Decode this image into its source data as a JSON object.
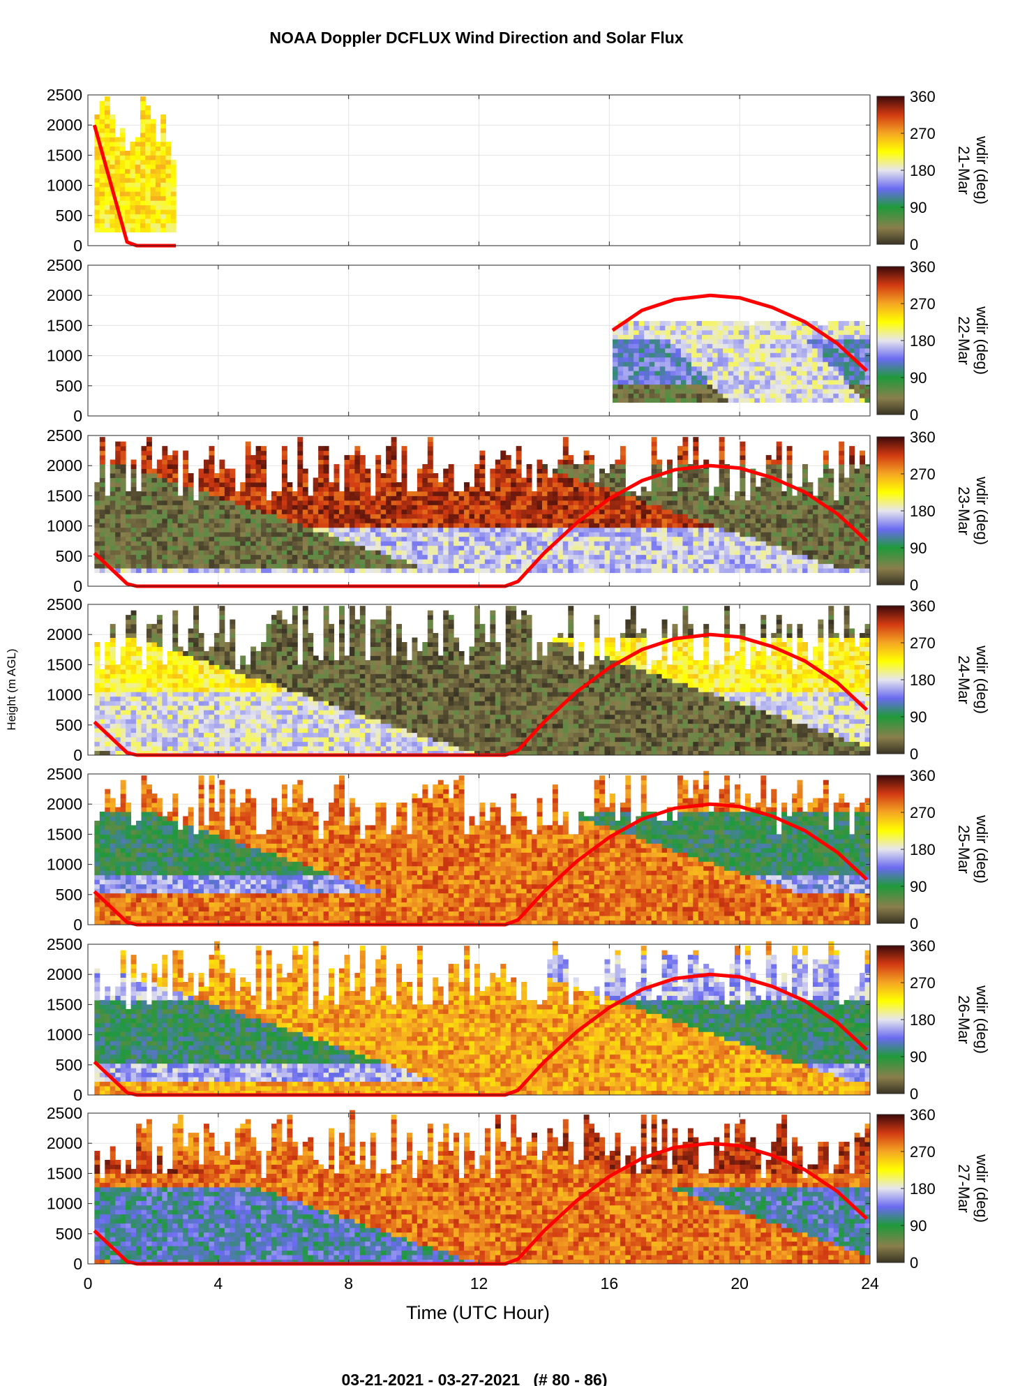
{
  "title": "NOAA Doppler DCFLUX Wind Direction and Solar Flux",
  "footer": "03-21-2021 - 03-27-2021   (# 80 - 86)",
  "ylabel": "Height (m AGL)",
  "xlabel": "Time (UTC Hour)",
  "chart_data": {
    "type": "heatmap",
    "title": "NOAA Doppler DCFLUX Wind Direction and Solar Flux",
    "xlabel": "Time (UTC Hour)",
    "ylabel": "Height (m AGL)",
    "xlim": [
      0,
      24
    ],
    "ylim": [
      0,
      2500
    ],
    "x_ticks": [
      0,
      4,
      8,
      12,
      16,
      20,
      24
    ],
    "y_ticks": [
      0,
      500,
      1000,
      1500,
      2000,
      2500
    ],
    "colorbar": {
      "label": "wdir (deg)",
      "range": [
        0,
        360
      ],
      "ticks": [
        0,
        90,
        180,
        270,
        360
      ],
      "stops": [
        {
          "value": 0,
          "color": "#3a3424"
        },
        {
          "value": 40,
          "color": "#8a7f4c"
        },
        {
          "value": 90,
          "color": "#1f9a3a"
        },
        {
          "value": 135,
          "color": "#6a6af0"
        },
        {
          "value": 180,
          "color": "#e6e6ee"
        },
        {
          "value": 225,
          "color": "#ffff00"
        },
        {
          "value": 270,
          "color": "#f5a623"
        },
        {
          "value": 315,
          "color": "#d23a12"
        },
        {
          "value": 360,
          "color": "#3b0a0a"
        }
      ]
    },
    "grid": true,
    "panels": [
      {
        "day": "21-Mar",
        "data_extent_hours": [
          0.2,
          2.7
        ],
        "wind_direction_profile": [
          {
            "height_range": [
              200,
              500
            ],
            "wdir": 225
          },
          {
            "height_range": [
              500,
              2400
            ],
            "wdir": 235
          }
        ],
        "solar_flux_curve": {
          "x": [
            0.2,
            1.2,
            1.5,
            2.7
          ],
          "y": [
            2000,
            60,
            0,
            0
          ]
        }
      },
      {
        "day": "22-Mar",
        "data_extent_hours": [
          16.1,
          24.0
        ],
        "wind_direction_profile": [
          {
            "height_range": [
              200,
              1500
            ],
            "wdir": 180
          },
          {
            "height_range": [
              200,
              500
            ],
            "wdir": 40
          },
          {
            "height_range": [
              500,
              1200
            ],
            "wdir": 130
          }
        ],
        "solar_flux_curve": {
          "x": [
            16.1,
            17,
            18,
            19.1,
            20,
            21,
            22,
            23,
            23.9
          ],
          "y": [
            1420,
            1750,
            1930,
            2000,
            1960,
            1800,
            1560,
            1200,
            750
          ]
        }
      },
      {
        "day": "23-Mar",
        "data_extent_hours": [
          0.2,
          24.0
        ],
        "wind_direction_profile": [
          {
            "height_range": [
              200,
              900
            ],
            "wdir": 170
          },
          {
            "height_range": [
              900,
              2400
            ],
            "wdir": 320
          },
          {
            "height_range": [
              300,
              2000
            ],
            "wdir": 35
          }
        ],
        "solar_flux_curve": {
          "x": [
            0.2,
            1.2,
            1.5,
            12.8,
            13.2,
            14,
            15,
            16,
            17,
            18,
            19.1,
            20,
            21,
            22,
            23,
            23.9
          ],
          "y": [
            550,
            40,
            0,
            0,
            80,
            550,
            1050,
            1450,
            1750,
            1930,
            2000,
            1960,
            1800,
            1560,
            1200,
            750
          ]
        }
      },
      {
        "day": "24-Mar",
        "data_extent_hours": [
          0.2,
          24.0
        ],
        "wind_direction_profile": [
          {
            "height_range": [
              0,
              2400
            ],
            "wdir": 30
          },
          {
            "height_range": [
              0,
              1800
            ],
            "wdir": 180
          },
          {
            "height_range": [
              1000,
              1900
            ],
            "wdir": 225
          }
        ],
        "solar_flux_curve": {
          "x": [
            0.2,
            1.2,
            1.5,
            12.8,
            13.2,
            14,
            15,
            16,
            17,
            18,
            19.1,
            20,
            21,
            22,
            23,
            23.9
          ],
          "y": [
            550,
            40,
            0,
            0,
            80,
            550,
            1050,
            1450,
            1750,
            1930,
            2000,
            1960,
            1800,
            1560,
            1200,
            750
          ]
        }
      },
      {
        "day": "25-Mar",
        "data_extent_hours": [
          0.2,
          24.0
        ],
        "wind_direction_profile": [
          {
            "height_range": [
              0,
              2500
            ],
            "wdir": 290
          },
          {
            "height_range": [
              500,
              1500
            ],
            "wdir": 150
          },
          {
            "height_range": [
              800,
              1800
            ],
            "wdir": 90
          }
        ],
        "solar_flux_curve": {
          "x": [
            0.2,
            1.2,
            1.5,
            12.8,
            13.2,
            14,
            15,
            16,
            17,
            18,
            19.1,
            20,
            21,
            22,
            23,
            23.9
          ],
          "y": [
            550,
            40,
            0,
            0,
            80,
            550,
            1050,
            1450,
            1750,
            1930,
            2000,
            1960,
            1800,
            1560,
            1200,
            750
          ]
        }
      },
      {
        "day": "26-Mar",
        "data_extent_hours": [
          0.2,
          24.0
        ],
        "wind_direction_profile": [
          {
            "height_range": [
              0,
              2500
            ],
            "wdir": 270
          },
          {
            "height_range": [
              200,
              2300
            ],
            "wdir": 160
          },
          {
            "height_range": [
              500,
              1500
            ],
            "wdir": 95
          }
        ],
        "solar_flux_curve": {
          "x": [
            0.2,
            1.2,
            1.5,
            12.8,
            13.2,
            14,
            15,
            16,
            17,
            18,
            19.1,
            20,
            21,
            22,
            23,
            23.9
          ],
          "y": [
            550,
            40,
            0,
            0,
            80,
            550,
            1050,
            1450,
            1750,
            1930,
            2000,
            1960,
            1800,
            1560,
            1200,
            750
          ]
        }
      },
      {
        "day": "27-Mar",
        "data_extent_hours": [
          0.2,
          24.0
        ],
        "wind_direction_profile": [
          {
            "height_range": [
              0,
              2500
            ],
            "wdir": 290
          },
          {
            "height_range": [
              0,
              1200
            ],
            "wdir": 120
          },
          {
            "height_range": [
              1500,
              2500
            ],
            "wdir": 320
          }
        ],
        "solar_flux_curve": {
          "x": [
            0.2,
            1.2,
            1.5,
            12.8,
            13.2,
            14,
            15,
            16,
            17,
            18,
            19.1,
            20,
            21,
            22,
            23,
            23.9
          ],
          "y": [
            550,
            40,
            0,
            0,
            80,
            550,
            1050,
            1450,
            1750,
            1930,
            2000,
            1960,
            1800,
            1560,
            1200,
            750
          ]
        }
      }
    ]
  }
}
